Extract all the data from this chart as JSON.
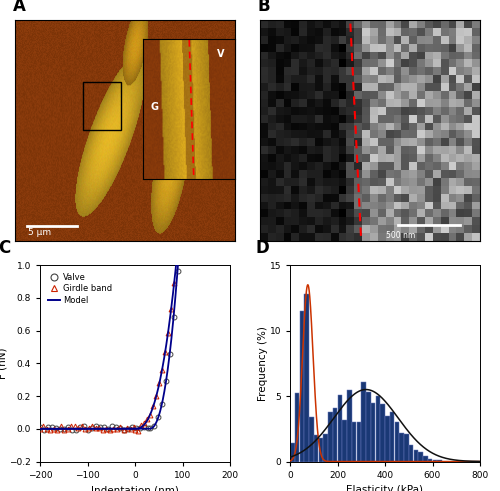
{
  "panel_labels": [
    "A",
    "B",
    "C",
    "D"
  ],
  "panel_label_fontsize": 12,
  "panel_label_fontweight": "bold",
  "C_xlabel": "Indentation (nm)",
  "C_ylabel": "F (nN)",
  "C_xlim": [
    -200,
    200
  ],
  "C_ylim": [
    -0.2,
    1.0
  ],
  "C_yticks": [
    -0.2,
    0.0,
    0.2,
    0.4,
    0.6,
    0.8,
    1.0
  ],
  "C_xticks": [
    -200,
    -100,
    0,
    100,
    200
  ],
  "C_valve_color": "#444444",
  "C_girdle_color": "#cc2200",
  "C_model_color": "#00008B",
  "D_xlabel": "Elasticity (kPa)",
  "D_ylabel": "Frequency (%)",
  "D_xlim": [
    0,
    800
  ],
  "D_ylim": [
    0,
    15
  ],
  "D_bar_color": "#1a3875",
  "D_fit1_color": "#cc3300",
  "D_fit2_color": "#111111",
  "D_xticks": [
    0,
    200,
    400,
    600,
    800
  ],
  "D_yticks": [
    0,
    5,
    10,
    15
  ],
  "hist_bin_edges": [
    0,
    20,
    40,
    60,
    80,
    100,
    120,
    140,
    160,
    180,
    200,
    220,
    240,
    260,
    280,
    300,
    320,
    340,
    360,
    380,
    400,
    420,
    440,
    460,
    480,
    500,
    520,
    540,
    560,
    580,
    600,
    620,
    640,
    660,
    680,
    700,
    720,
    740,
    760,
    780,
    800
  ],
  "hist_values": [
    1.4,
    5.2,
    11.5,
    12.8,
    3.4,
    2.0,
    1.8,
    2.1,
    3.8,
    4.1,
    5.1,
    3.2,
    5.5,
    3.0,
    3.0,
    6.1,
    5.3,
    4.5,
    5.0,
    4.4,
    3.5,
    3.8,
    3.0,
    2.2,
    2.1,
    1.3,
    0.9,
    0.7,
    0.4,
    0.2,
    0.15,
    0.1,
    0.0,
    0.0,
    0.0,
    0.0,
    0.0,
    0.0,
    0.0,
    0.0
  ],
  "gauss1_mu": 75,
  "gauss1_sig": 22,
  "gauss1_A": 13.5,
  "gauss2_mu": 320,
  "gauss2_sig": 135,
  "gauss2_A": 5.5,
  "background_color": "#f0f0f0"
}
